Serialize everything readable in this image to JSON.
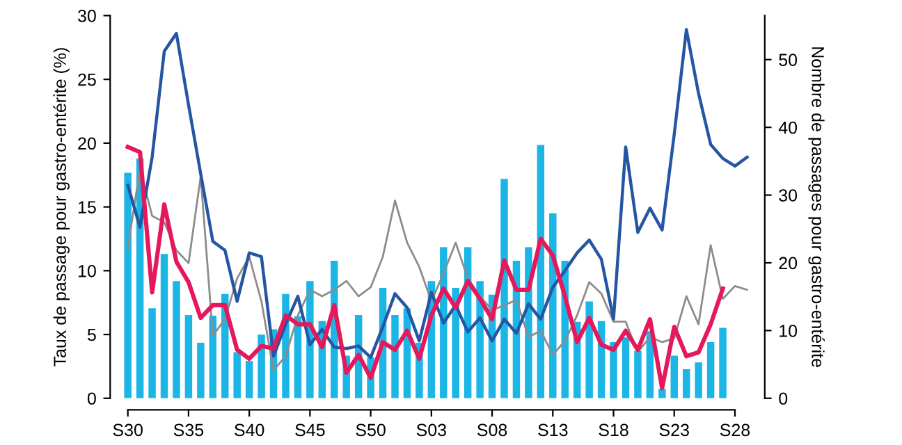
{
  "chart_data": {
    "type": "bar",
    "ylabel": "Taux de passage pour gastro-entérite (%)",
    "y2label": "Nombre de passages pour gastro-entérite",
    "categories": [
      "S30",
      null,
      null,
      null,
      null,
      "S35",
      null,
      null,
      null,
      null,
      "S40",
      null,
      null,
      null,
      null,
      "S45",
      null,
      null,
      null,
      null,
      "S50",
      null,
      null,
      null,
      null,
      "S03",
      null,
      null,
      null,
      null,
      "S08",
      null,
      null,
      null,
      null,
      "S13",
      null,
      null,
      null,
      null,
      "S18",
      null,
      null,
      null,
      null,
      "S23",
      null,
      null,
      null,
      null,
      "S28",
      null
    ],
    "ylim": [
      0,
      30
    ],
    "yticks": [
      0,
      5,
      10,
      15,
      20,
      25,
      30
    ],
    "y2lim": [
      0,
      56.5
    ],
    "y2ticks": [
      0,
      10,
      20,
      30,
      40,
      50
    ],
    "grid": false,
    "legend": false,
    "marker": "none",
    "line_style": "solid",
    "series": [
      {
        "axis": "y2",
        "color": "#1bb5e6",
        "values": [
          33.3,
          35.4,
          13.3,
          21.3,
          17.3,
          12.3,
          8.2,
          12.2,
          15.4,
          6.8,
          5.5,
          9.4,
          10.2,
          15.4,
          12.1,
          17.3,
          11.4,
          20.3,
          6.3,
          12.3,
          6.0,
          16.3,
          12.3,
          13.3,
          8.2,
          17.3,
          22.3,
          16.3,
          22.3,
          17.3,
          15.3,
          32.4,
          20.3,
          22.3,
          37.4,
          27.3,
          20.3,
          11.3,
          14.3,
          11.4,
          8.3,
          9.0,
          7.0,
          9.9,
          1.4,
          6.3,
          4.3,
          5.3,
          8.3,
          10.4,
          null,
          null
        ]
      },
      {
        "type": "line",
        "axis": "y",
        "color": "#8c8c8c",
        "values": [
          11.8,
          18.0,
          14.3,
          13.8,
          11.6,
          10.6,
          17.4,
          4.9,
          6.2,
          9.4,
          11.1,
          7.6,
          2.2,
          3.3,
          6.5,
          8.5,
          8.0,
          8.5,
          9.2,
          8.0,
          8.7,
          11.1,
          15.5,
          12.2,
          10.3,
          7.6,
          9.8,
          12.2,
          9.4,
          8.0,
          6.9,
          7.3,
          7.7,
          4.8,
          5.3,
          3.4,
          4.5,
          6.5,
          9.1,
          8.2,
          6.0,
          6.0,
          3.6,
          4.8,
          4.4,
          4.7,
          8.0,
          5.8,
          12.0,
          7.8,
          8.8,
          8.5
        ]
      },
      {
        "type": "line",
        "axis": "y",
        "color": "#2556a3",
        "values": [
          16.7,
          13.4,
          18.9,
          27.2,
          28.6,
          23.0,
          17.6,
          12.3,
          11.6,
          7.6,
          11.4,
          11.1,
          3.3,
          5.8,
          8.0,
          4.2,
          5.4,
          4.0,
          3.9,
          4.1,
          3.2,
          5.6,
          8.2,
          7.1,
          4.5,
          8.3,
          5.9,
          7.3,
          5.2,
          6.3,
          4.5,
          6.2,
          5.1,
          7.4,
          6.2,
          8.7,
          10.0,
          11.4,
          12.4,
          10.9,
          6.2,
          19.7,
          13.0,
          14.9,
          13.2,
          20.7,
          28.9,
          23.9,
          19.9,
          18.8,
          18.2,
          18.9
        ]
      },
      {
        "type": "line",
        "axis": "y",
        "color": "#e5185c",
        "values": [
          19.7,
          19.3,
          8.3,
          15.2,
          10.7,
          9.1,
          6.3,
          7.3,
          7.3,
          3.8,
          3.1,
          4.1,
          3.9,
          6.5,
          5.8,
          5.8,
          4.0,
          7.3,
          2.0,
          3.4,
          1.6,
          4.4,
          3.8,
          5.3,
          3.1,
          6.5,
          8.6,
          7.1,
          9.2,
          7.8,
          6.2,
          10.8,
          8.5,
          8.5,
          12.5,
          11.2,
          8.0,
          4.4,
          6.3,
          4.2,
          3.8,
          5.3,
          3.8,
          6.2,
          0.8,
          5.6,
          3.3,
          3.6,
          5.8,
          8.6,
          null,
          null
        ]
      }
    ]
  }
}
